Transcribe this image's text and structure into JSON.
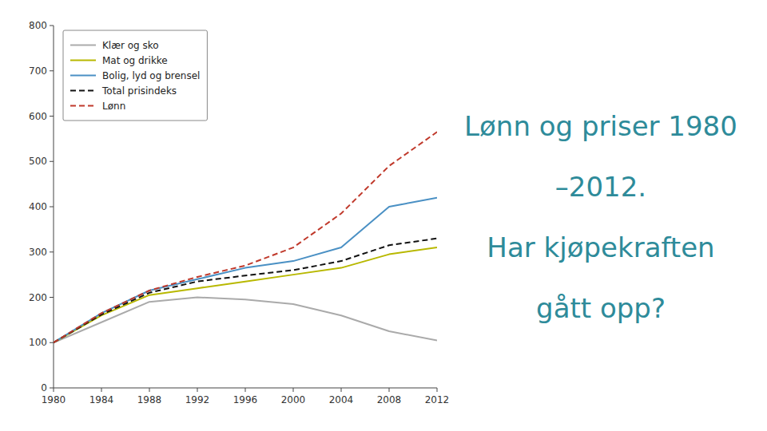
{
  "chart_data": {
    "type": "line",
    "title": [
      "Lønn og priser 1980",
      "–2012.",
      "Har kjøpekraften",
      "gått opp?"
    ],
    "x": [
      1980,
      1984,
      1988,
      1992,
      1996,
      2000,
      2004,
      2008,
      2012
    ],
    "series": [
      {
        "name": "Klær og sko",
        "color": "#aaaaaa",
        "line_style": "solid",
        "values": [
          100,
          145,
          190,
          200,
          195,
          185,
          160,
          125,
          105
        ]
      },
      {
        "name": "Mat og drikke",
        "color": "#b8b800",
        "line_style": "solid",
        "values": [
          100,
          160,
          205,
          220,
          235,
          250,
          265,
          295,
          310
        ]
      },
      {
        "name": "Bolig, lyd og brensel",
        "color": "#4a90c4",
        "line_style": "solid",
        "values": [
          100,
          165,
          215,
          240,
          265,
          280,
          310,
          400,
          420
        ]
      },
      {
        "name": "Total prisindeks",
        "color": "#111111",
        "line_style": "dashed",
        "values": [
          100,
          162,
          210,
          235,
          248,
          260,
          280,
          315,
          330
        ]
      },
      {
        "name": "Lønn",
        "color": "#c0392b",
        "line_style": "dashed",
        "values": [
          100,
          165,
          215,
          245,
          270,
          310,
          385,
          490,
          565
        ]
      }
    ],
    "xlim": [
      1980,
      2012
    ],
    "xticks": [
      1980,
      1984,
      1988,
      1992,
      1996,
      2000,
      2004,
      2008,
      2012
    ],
    "ylim": [
      0,
      800
    ],
    "yticks": [
      0,
      100,
      200,
      300,
      400,
      500,
      600,
      700,
      800
    ],
    "grid": false,
    "legend": "upper left"
  }
}
